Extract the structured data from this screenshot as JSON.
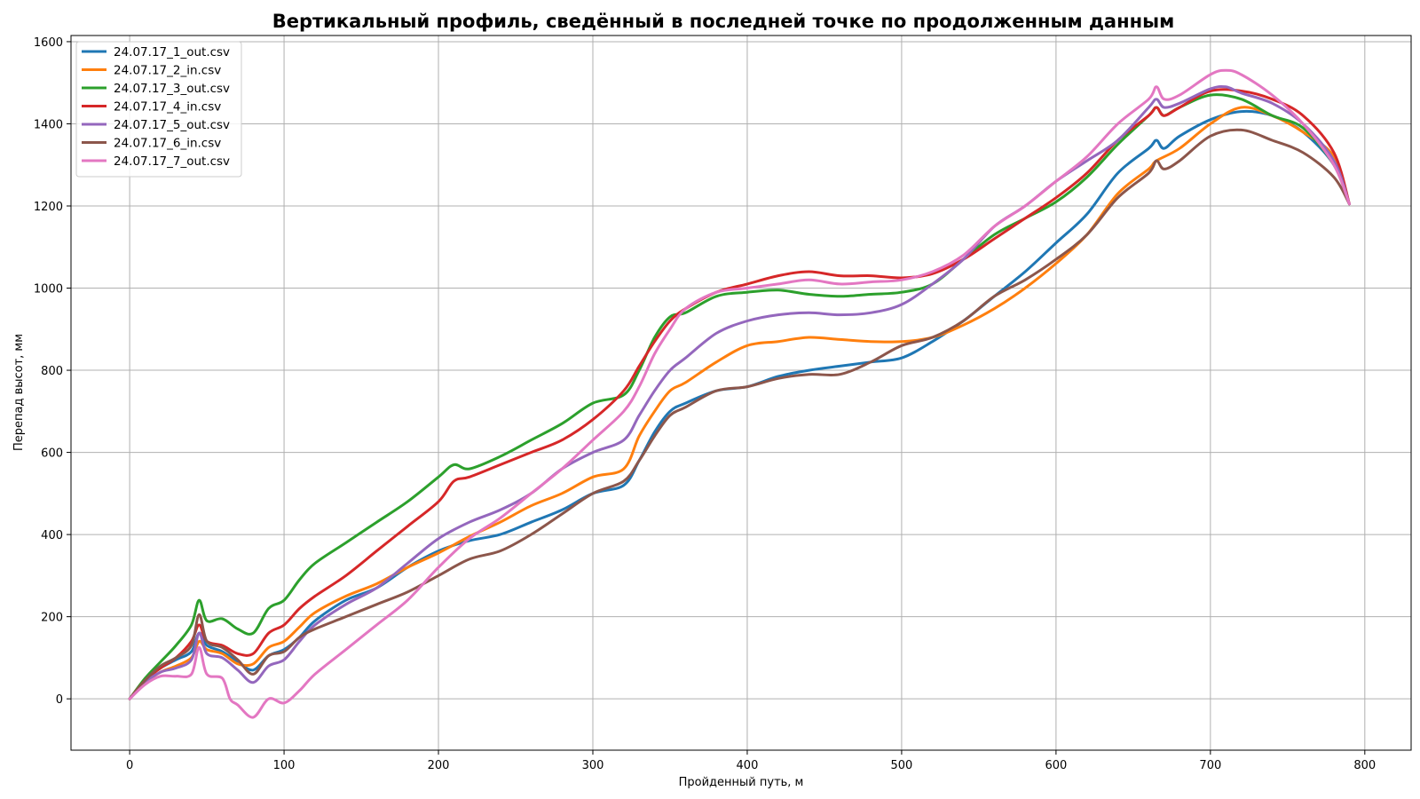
{
  "chart_data": {
    "type": "line",
    "title": "Вертикальный профиль, сведённый в последней точке по продолженным данным",
    "xlabel": "Пройденный путь, м",
    "ylabel": "Перепад высот, мм",
    "xlim": [
      -38,
      830
    ],
    "ylim": [
      -125,
      1615
    ],
    "xticks": [
      0,
      100,
      200,
      300,
      400,
      500,
      600,
      700,
      800
    ],
    "yticks": [
      0,
      200,
      400,
      600,
      800,
      1000,
      1200,
      1400,
      1600
    ],
    "grid": true,
    "legend_position": "top-left",
    "series": [
      {
        "name": "24.07.17_1_out.csv",
        "color": "#1f77b4",
        "x": [
          0,
          10,
          20,
          30,
          40,
          45,
          50,
          60,
          70,
          80,
          90,
          100,
          110,
          120,
          140,
          160,
          180,
          200,
          220,
          240,
          260,
          280,
          300,
          320,
          330,
          340,
          350,
          360,
          380,
          400,
          420,
          440,
          460,
          480,
          500,
          520,
          540,
          560,
          580,
          600,
          620,
          640,
          660,
          665,
          670,
          680,
          700,
          720,
          740,
          760,
          780,
          790
        ],
        "y": [
          0,
          45,
          75,
          95,
          115,
          160,
          130,
          115,
          90,
          70,
          105,
          120,
          150,
          190,
          240,
          270,
          320,
          360,
          385,
          400,
          430,
          460,
          500,
          520,
          580,
          650,
          700,
          720,
          750,
          760,
          785,
          800,
          810,
          820,
          830,
          870,
          920,
          980,
          1040,
          1110,
          1180,
          1280,
          1340,
          1360,
          1340,
          1370,
          1410,
          1430,
          1420,
          1380,
          1300,
          1205
        ]
      },
      {
        "name": "24.07.17_2_in.csv",
        "color": "#ff7f0e",
        "x": [
          0,
          10,
          20,
          30,
          40,
          45,
          50,
          60,
          70,
          80,
          90,
          100,
          110,
          120,
          140,
          160,
          180,
          200,
          220,
          240,
          260,
          280,
          300,
          320,
          330,
          340,
          350,
          360,
          380,
          400,
          420,
          440,
          460,
          480,
          500,
          520,
          540,
          560,
          580,
          600,
          620,
          640,
          660,
          665,
          680,
          700,
          720,
          740,
          760,
          780,
          790
        ],
        "y": [
          0,
          40,
          65,
          80,
          100,
          140,
          120,
          110,
          85,
          85,
          125,
          140,
          175,
          210,
          250,
          280,
          320,
          355,
          395,
          430,
          470,
          500,
          540,
          560,
          640,
          700,
          750,
          770,
          820,
          860,
          870,
          880,
          875,
          870,
          870,
          880,
          910,
          950,
          1000,
          1060,
          1130,
          1230,
          1290,
          1310,
          1340,
          1400,
          1440,
          1420,
          1380,
          1320,
          1205
        ]
      },
      {
        "name": "24.07.17_3_out.csv",
        "color": "#2ca02c",
        "x": [
          0,
          10,
          20,
          30,
          40,
          45,
          50,
          60,
          70,
          80,
          90,
          100,
          110,
          120,
          140,
          160,
          180,
          200,
          210,
          220,
          240,
          260,
          280,
          300,
          320,
          330,
          340,
          350,
          360,
          380,
          400,
          420,
          440,
          460,
          480,
          500,
          520,
          540,
          560,
          580,
          600,
          620,
          640,
          660,
          665,
          670,
          680,
          700,
          720,
          740,
          760,
          780,
          790
        ],
        "y": [
          0,
          50,
          90,
          130,
          180,
          240,
          190,
          195,
          170,
          160,
          220,
          240,
          290,
          330,
          380,
          430,
          480,
          540,
          570,
          560,
          590,
          630,
          670,
          720,
          740,
          800,
          880,
          930,
          940,
          980,
          990,
          995,
          985,
          980,
          985,
          990,
          1010,
          1070,
          1130,
          1170,
          1210,
          1270,
          1350,
          1420,
          1440,
          1420,
          1440,
          1470,
          1460,
          1420,
          1390,
          1300,
          1205
        ]
      },
      {
        "name": "24.07.17_4_in.csv",
        "color": "#d62728",
        "x": [
          0,
          10,
          20,
          30,
          40,
          45,
          50,
          60,
          70,
          80,
          90,
          100,
          110,
          120,
          140,
          160,
          180,
          200,
          210,
          220,
          240,
          260,
          280,
          300,
          320,
          330,
          340,
          350,
          360,
          380,
          400,
          420,
          440,
          460,
          480,
          500,
          520,
          540,
          560,
          580,
          600,
          620,
          640,
          660,
          665,
          670,
          680,
          700,
          720,
          740,
          760,
          780,
          790
        ],
        "y": [
          0,
          45,
          75,
          100,
          140,
          180,
          140,
          130,
          110,
          110,
          160,
          180,
          220,
          250,
          300,
          360,
          420,
          480,
          530,
          540,
          570,
          600,
          630,
          680,
          750,
          810,
          870,
          920,
          950,
          990,
          1010,
          1030,
          1040,
          1030,
          1030,
          1025,
          1035,
          1070,
          1120,
          1170,
          1220,
          1280,
          1360,
          1420,
          1440,
          1420,
          1440,
          1480,
          1480,
          1460,
          1420,
          1330,
          1205
        ]
      },
      {
        "name": "24.07.17_5_out.csv",
        "color": "#9467bd",
        "x": [
          0,
          10,
          20,
          30,
          40,
          45,
          50,
          60,
          70,
          80,
          90,
          100,
          110,
          120,
          140,
          160,
          180,
          200,
          220,
          240,
          260,
          280,
          300,
          320,
          330,
          340,
          350,
          360,
          380,
          400,
          420,
          440,
          460,
          480,
          500,
          520,
          540,
          560,
          580,
          600,
          620,
          640,
          660,
          665,
          670,
          680,
          700,
          710,
          720,
          740,
          760,
          780,
          790
        ],
        "y": [
          0,
          40,
          65,
          75,
          95,
          160,
          110,
          100,
          70,
          40,
          80,
          95,
          140,
          180,
          230,
          270,
          330,
          390,
          430,
          460,
          500,
          560,
          600,
          630,
          690,
          750,
          800,
          830,
          890,
          920,
          935,
          940,
          935,
          940,
          960,
          1010,
          1070,
          1150,
          1200,
          1260,
          1310,
          1360,
          1440,
          1460,
          1440,
          1450,
          1485,
          1490,
          1475,
          1450,
          1400,
          1310,
          1205
        ]
      },
      {
        "name": "24.07.17_6_in.csv",
        "color": "#8c564b",
        "x": [
          0,
          10,
          20,
          30,
          40,
          45,
          50,
          60,
          70,
          80,
          90,
          100,
          110,
          120,
          140,
          160,
          180,
          200,
          220,
          240,
          260,
          280,
          300,
          320,
          330,
          340,
          350,
          360,
          380,
          400,
          420,
          440,
          460,
          480,
          500,
          520,
          540,
          560,
          580,
          600,
          620,
          640,
          660,
          665,
          670,
          680,
          700,
          720,
          740,
          760,
          780,
          790
        ],
        "y": [
          0,
          45,
          80,
          100,
          130,
          205,
          140,
          125,
          95,
          60,
          105,
          115,
          150,
          170,
          200,
          230,
          260,
          300,
          340,
          360,
          400,
          450,
          500,
          530,
          580,
          640,
          690,
          710,
          750,
          760,
          780,
          790,
          790,
          820,
          860,
          880,
          920,
          980,
          1020,
          1070,
          1130,
          1220,
          1280,
          1310,
          1290,
          1310,
          1370,
          1385,
          1360,
          1330,
          1270,
          1205
        ]
      },
      {
        "name": "24.07.17_7_out.csv",
        "color": "#e377c2",
        "x": [
          0,
          10,
          20,
          30,
          40,
          45,
          50,
          60,
          65,
          70,
          80,
          90,
          100,
          110,
          120,
          140,
          160,
          180,
          200,
          220,
          240,
          260,
          280,
          300,
          320,
          330,
          340,
          350,
          360,
          380,
          400,
          420,
          440,
          460,
          480,
          500,
          520,
          540,
          560,
          580,
          600,
          620,
          640,
          660,
          665,
          670,
          680,
          700,
          710,
          720,
          740,
          760,
          780,
          790
        ],
        "y": [
          0,
          35,
          55,
          55,
          60,
          125,
          60,
          50,
          0,
          -15,
          -45,
          0,
          -10,
          20,
          60,
          120,
          180,
          240,
          320,
          390,
          440,
          500,
          560,
          630,
          700,
          760,
          840,
          900,
          950,
          990,
          1000,
          1010,
          1020,
          1010,
          1015,
          1020,
          1040,
          1080,
          1150,
          1200,
          1260,
          1320,
          1400,
          1460,
          1490,
          1460,
          1470,
          1520,
          1530,
          1520,
          1470,
          1400,
          1300,
          1205
        ]
      }
    ]
  }
}
